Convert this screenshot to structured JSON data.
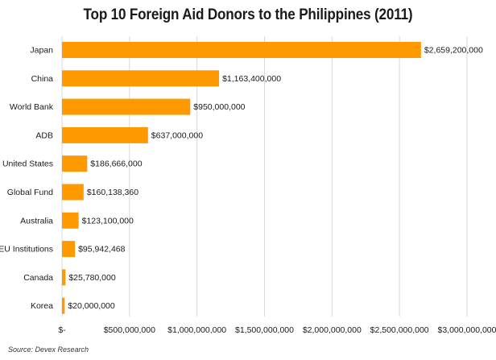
{
  "chart_data": {
    "type": "bar",
    "orientation": "horizontal",
    "title": "Top 10 Foreign Aid Donors to the Philippines (2011)",
    "categories": [
      "Japan",
      "China",
      "World Bank",
      "ADB",
      "United States",
      "Global Fund",
      "Australia",
      "EU Institutions",
      "Canada",
      "Korea"
    ],
    "values": [
      2659200000,
      1163400000,
      950000000,
      637000000,
      186666000,
      160138360,
      123100000,
      95942468,
      25780000,
      20000000
    ],
    "data_labels": [
      "$2,659,200,000",
      "$1,163,400,000",
      "$950,000,000",
      "$637,000,000",
      "$186,666,000",
      "$160,138,360",
      "$123,100,000",
      "$95,942,468",
      "$25,780,000",
      "$20,000,000"
    ],
    "x_ticks": [
      0,
      500000000,
      1000000000,
      1500000000,
      2000000000,
      2500000000,
      3000000000
    ],
    "x_tick_labels": [
      "$-",
      "$500,000,000",
      "$1,000,000,000",
      "$1,500,000,000",
      "$2,000,000,000",
      "$2,500,000,000",
      "$3,000,000,000"
    ],
    "xlim": [
      0,
      3000000000
    ],
    "xlabel": "",
    "ylabel": "",
    "grid": true,
    "bar_color": "#FF9900",
    "grid_color": "#d9d9d9"
  },
  "source": "Source: Devex Research"
}
